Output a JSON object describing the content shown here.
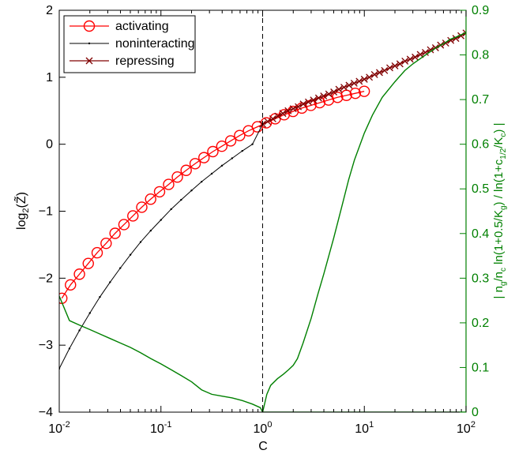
{
  "chart_data": {
    "type": "line",
    "xlabel": "C",
    "xscale": "log",
    "xlim": [
      0.01,
      100
    ],
    "x_tick_values": [
      0.01,
      0.1,
      1,
      10,
      100
    ],
    "x_tick_labels": [
      {
        "base": "10",
        "exp": "-2"
      },
      {
        "base": "10",
        "exp": "-1"
      },
      {
        "base": "10",
        "exp": "0"
      },
      {
        "base": "10",
        "exp": "1"
      },
      {
        "base": "10",
        "exp": "2"
      }
    ],
    "ylabel_left": {
      "base": "log",
      "sub": "2",
      "rest": "(Z̃)"
    },
    "ylim_left": [
      -4,
      2
    ],
    "y_ticks_left": [
      "-4",
      "-3",
      "-2",
      "-1",
      "0",
      "1",
      "2"
    ],
    "ylabel_right": "| n_g/n_c ln(1+0.5/K_g) / ln(1+c_1/2/K_c) |",
    "ylim_right": [
      0,
      0.9
    ],
    "y_ticks_right": [
      "0",
      "0.1",
      "0.2",
      "0.3",
      "0.4",
      "0.5",
      "0.6",
      "0.7",
      "0.8",
      "0.9"
    ],
    "vline_x": 1,
    "legend_position": "top-left",
    "colors": {
      "activating": "#ff0000",
      "noninteracting": "#000000",
      "repressing": "#800000",
      "right_axis": "#008000"
    },
    "series": [
      {
        "name": "activating",
        "marker": "circle",
        "axis": "left",
        "x": [
          0.0106,
          0.0129,
          0.0158,
          0.0193,
          0.0236,
          0.0289,
          0.0354,
          0.0433,
          0.053,
          0.0648,
          0.0792,
          0.0969,
          0.119,
          0.145,
          0.177,
          0.217,
          0.265,
          0.324,
          0.397,
          0.485,
          0.594,
          0.726,
          0.888,
          1.087,
          1.33,
          1.63,
          1.99,
          2.43,
          2.98,
          3.64,
          4.45,
          5.45,
          6.67,
          8.16,
          9.98
        ],
        "y": [
          -2.3,
          -2.1,
          -1.94,
          -1.78,
          -1.62,
          -1.48,
          -1.33,
          -1.2,
          -1.07,
          -0.94,
          -0.82,
          -0.71,
          -0.6,
          -0.49,
          -0.39,
          -0.29,
          -0.2,
          -0.11,
          -0.03,
          0.05,
          0.13,
          0.2,
          0.26,
          0.32,
          0.38,
          0.44,
          0.49,
          0.54,
          0.58,
          0.62,
          0.66,
          0.7,
          0.73,
          0.76,
          0.79
        ]
      },
      {
        "name": "noninteracting",
        "marker": "point",
        "axis": "left",
        "x": [
          0.01,
          0.0126,
          0.0158,
          0.02,
          0.0251,
          0.0316,
          0.0398,
          0.0501,
          0.0631,
          0.0794,
          0.1,
          0.126,
          0.158,
          0.2,
          0.251,
          0.316,
          0.398,
          0.501,
          0.631,
          0.794,
          1.0
        ],
        "y": [
          -3.35,
          -3.05,
          -2.78,
          -2.52,
          -2.28,
          -2.06,
          -1.85,
          -1.65,
          -1.46,
          -1.29,
          -1.13,
          -0.97,
          -0.83,
          -0.69,
          -0.56,
          -0.44,
          -0.32,
          -0.21,
          -0.1,
          0.0,
          0.3
        ]
      },
      {
        "name": "repressing",
        "marker": "x",
        "axis": "left",
        "x": [
          1.0,
          1.12,
          1.26,
          1.41,
          1.58,
          1.78,
          2.0,
          2.24,
          2.51,
          2.82,
          3.16,
          3.55,
          3.98,
          4.47,
          5.01,
          5.62,
          6.31,
          7.08,
          7.94,
          8.91,
          10.0,
          11.2,
          12.6,
          14.1,
          15.8,
          17.8,
          20.0,
          22.4,
          25.1,
          28.2,
          31.6,
          35.5,
          39.8,
          44.7,
          50.1,
          56.2,
          63.1,
          70.8,
          79.4,
          89.1,
          100.0
        ],
        "y": [
          0.3,
          0.34,
          0.38,
          0.42,
          0.46,
          0.5,
          0.53,
          0.56,
          0.6,
          0.63,
          0.66,
          0.69,
          0.72,
          0.75,
          0.78,
          0.82,
          0.85,
          0.88,
          0.91,
          0.94,
          0.97,
          1.0,
          1.04,
          1.07,
          1.1,
          1.14,
          1.17,
          1.2,
          1.24,
          1.27,
          1.3,
          1.34,
          1.37,
          1.41,
          1.44,
          1.48,
          1.51,
          1.55,
          1.58,
          1.62,
          1.66
        ]
      },
      {
        "name": "",
        "marker": "none",
        "axis": "right",
        "x": [
          0.01,
          0.0126,
          0.0158,
          0.02,
          0.0251,
          0.0316,
          0.0398,
          0.0501,
          0.0631,
          0.0794,
          0.1,
          0.126,
          0.158,
          0.2,
          0.251,
          0.316,
          0.398,
          0.501,
          0.631,
          0.794,
          0.95,
          1.0,
          1.26,
          1.58,
          2.0,
          2.51,
          3.16,
          3.98,
          5.01,
          6.31,
          7.94,
          10.0,
          12.6,
          15.8,
          20.0,
          25.1,
          31.6,
          39.8,
          50.1,
          63.1,
          79.4,
          100.0
        ],
        "y": [
          0.26,
          0.205,
          0.195,
          0.185,
          0.175,
          0.165,
          0.155,
          0.145,
          0.133,
          0.12,
          0.108,
          0.095,
          0.082,
          0.068,
          0.05,
          0.04,
          0.036,
          0.032,
          0.026,
          0.018,
          0.01,
          0.0,
          0.0,
          0.0,
          0.0,
          0.0,
          0.0,
          0.0,
          0.0,
          0.0,
          0.0,
          0.0,
          0.0,
          0.0,
          0.0,
          0.0,
          0.0,
          0.0,
          0.0,
          0.0,
          0.0,
          0.0
        ]
      },
      {
        "name": "",
        "marker": "none",
        "axis": "right",
        "x": [
          1.0,
          1.1,
          1.2,
          1.4,
          1.6,
          1.8,
          2.0,
          2.2,
          2.5,
          3.0,
          3.5,
          4.0,
          5.0,
          6.0,
          7.0,
          8.0,
          10.0,
          12.0,
          15.0,
          20.0,
          25.0,
          30.0,
          40.0,
          50.0,
          60.0,
          70.0,
          80.0,
          100.0
        ],
        "y": [
          0.0,
          0.04,
          0.06,
          0.075,
          0.085,
          0.095,
          0.105,
          0.12,
          0.155,
          0.21,
          0.265,
          0.31,
          0.39,
          0.46,
          0.52,
          0.565,
          0.625,
          0.665,
          0.705,
          0.74,
          0.765,
          0.78,
          0.8,
          0.815,
          0.825,
          0.835,
          0.84,
          0.85
        ]
      }
    ]
  }
}
